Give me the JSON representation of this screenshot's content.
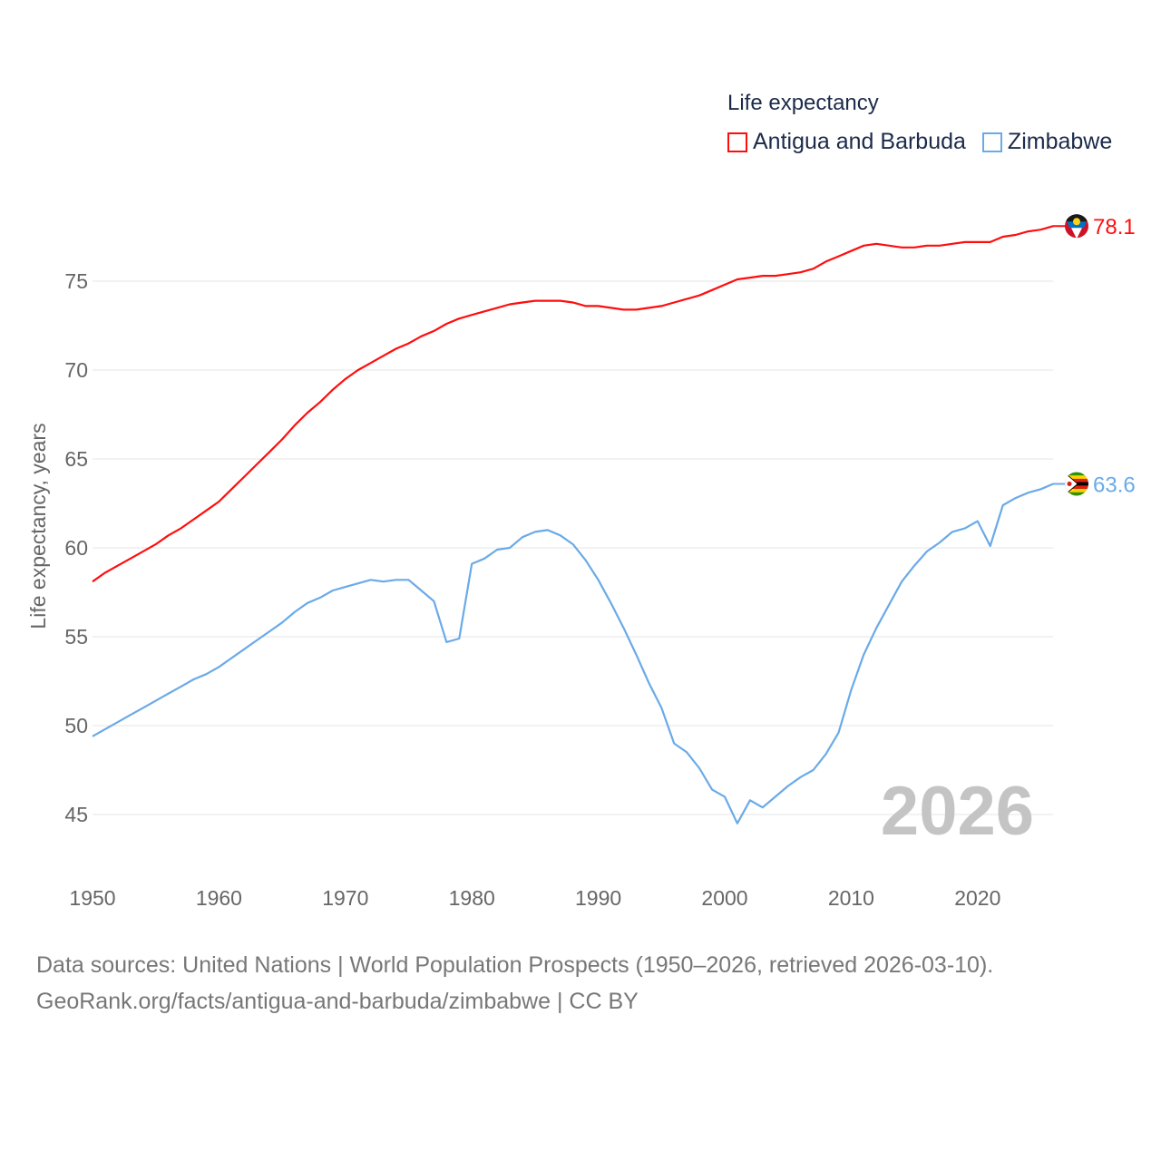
{
  "colors": {
    "antigua": "#ff0d0d",
    "zimbabwe": "#6aaae8",
    "grid": "#e6e6e6",
    "year_watermark": "#c4c4c4"
  },
  "chart_data": {
    "type": "line",
    "title": "Life expectancy",
    "xlabel": "",
    "ylabel": "Life expectancy, years",
    "xlim": [
      1950,
      2026
    ],
    "ylim": [
      43,
      80
    ],
    "x_ticks": [
      1950,
      1960,
      1970,
      1980,
      1990,
      2000,
      2010,
      2020
    ],
    "y_ticks": [
      45,
      50,
      55,
      60,
      65,
      70,
      75
    ],
    "grid": true,
    "legend_position": "top-right",
    "year_label": "2026",
    "x_start": 1950,
    "series": [
      {
        "name": "Antigua and Barbuda",
        "key": "antigua",
        "end_label": "78.1",
        "flag_icon": "antigua-flag-icon",
        "values": [
          58.1,
          58.6,
          59.0,
          59.4,
          59.8,
          60.2,
          60.7,
          61.1,
          61.6,
          62.1,
          62.6,
          63.3,
          64.0,
          64.7,
          65.4,
          66.1,
          66.9,
          67.6,
          68.2,
          68.9,
          69.5,
          70.0,
          70.4,
          70.8,
          71.2,
          71.5,
          71.9,
          72.2,
          72.6,
          72.9,
          73.1,
          73.3,
          73.5,
          73.7,
          73.8,
          73.9,
          73.9,
          73.9,
          73.8,
          73.6,
          73.6,
          73.5,
          73.4,
          73.4,
          73.5,
          73.6,
          73.8,
          74.0,
          74.2,
          74.5,
          74.8,
          75.1,
          75.2,
          75.3,
          75.3,
          75.4,
          75.5,
          75.7,
          76.1,
          76.4,
          76.7,
          77.0,
          77.1,
          77.0,
          76.9,
          76.9,
          77.0,
          77.0,
          77.1,
          77.2,
          77.2,
          77.2,
          77.5,
          77.6,
          77.8,
          77.9,
          78.1
        ]
      },
      {
        "name": "Zimbabwe",
        "key": "zimbabwe",
        "end_label": "63.6",
        "flag_icon": "zimbabwe-flag-icon",
        "values": [
          49.4,
          49.8,
          50.2,
          50.6,
          51.0,
          51.4,
          51.8,
          52.2,
          52.6,
          52.9,
          53.3,
          53.8,
          54.3,
          54.8,
          55.3,
          55.8,
          56.4,
          56.9,
          57.2,
          57.6,
          57.8,
          58.0,
          58.2,
          58.1,
          58.2,
          58.2,
          57.6,
          57.0,
          54.7,
          54.9,
          59.1,
          59.4,
          59.9,
          60.0,
          60.6,
          60.9,
          61.0,
          60.7,
          60.2,
          59.3,
          58.2,
          56.9,
          55.5,
          54.0,
          52.4,
          51.0,
          49.0,
          48.5,
          47.6,
          46.4,
          46.0,
          44.5,
          45.8,
          45.4,
          46.0,
          46.6,
          47.1,
          47.5,
          48.4,
          49.6,
          52.0,
          54.0,
          55.5,
          56.8,
          58.1,
          59.0,
          59.8,
          60.3,
          60.9,
          61.1,
          61.5,
          60.1,
          62.4,
          62.8,
          63.1,
          63.3,
          63.6
        ]
      }
    ]
  },
  "footer": {
    "sources": "Data sources: United Nations | World Population Prospects (1950–2026, retrieved 2026-03-10).",
    "link": "GeoRank.org/facts/antigua-and-barbuda/zimbabwe | CC BY"
  }
}
